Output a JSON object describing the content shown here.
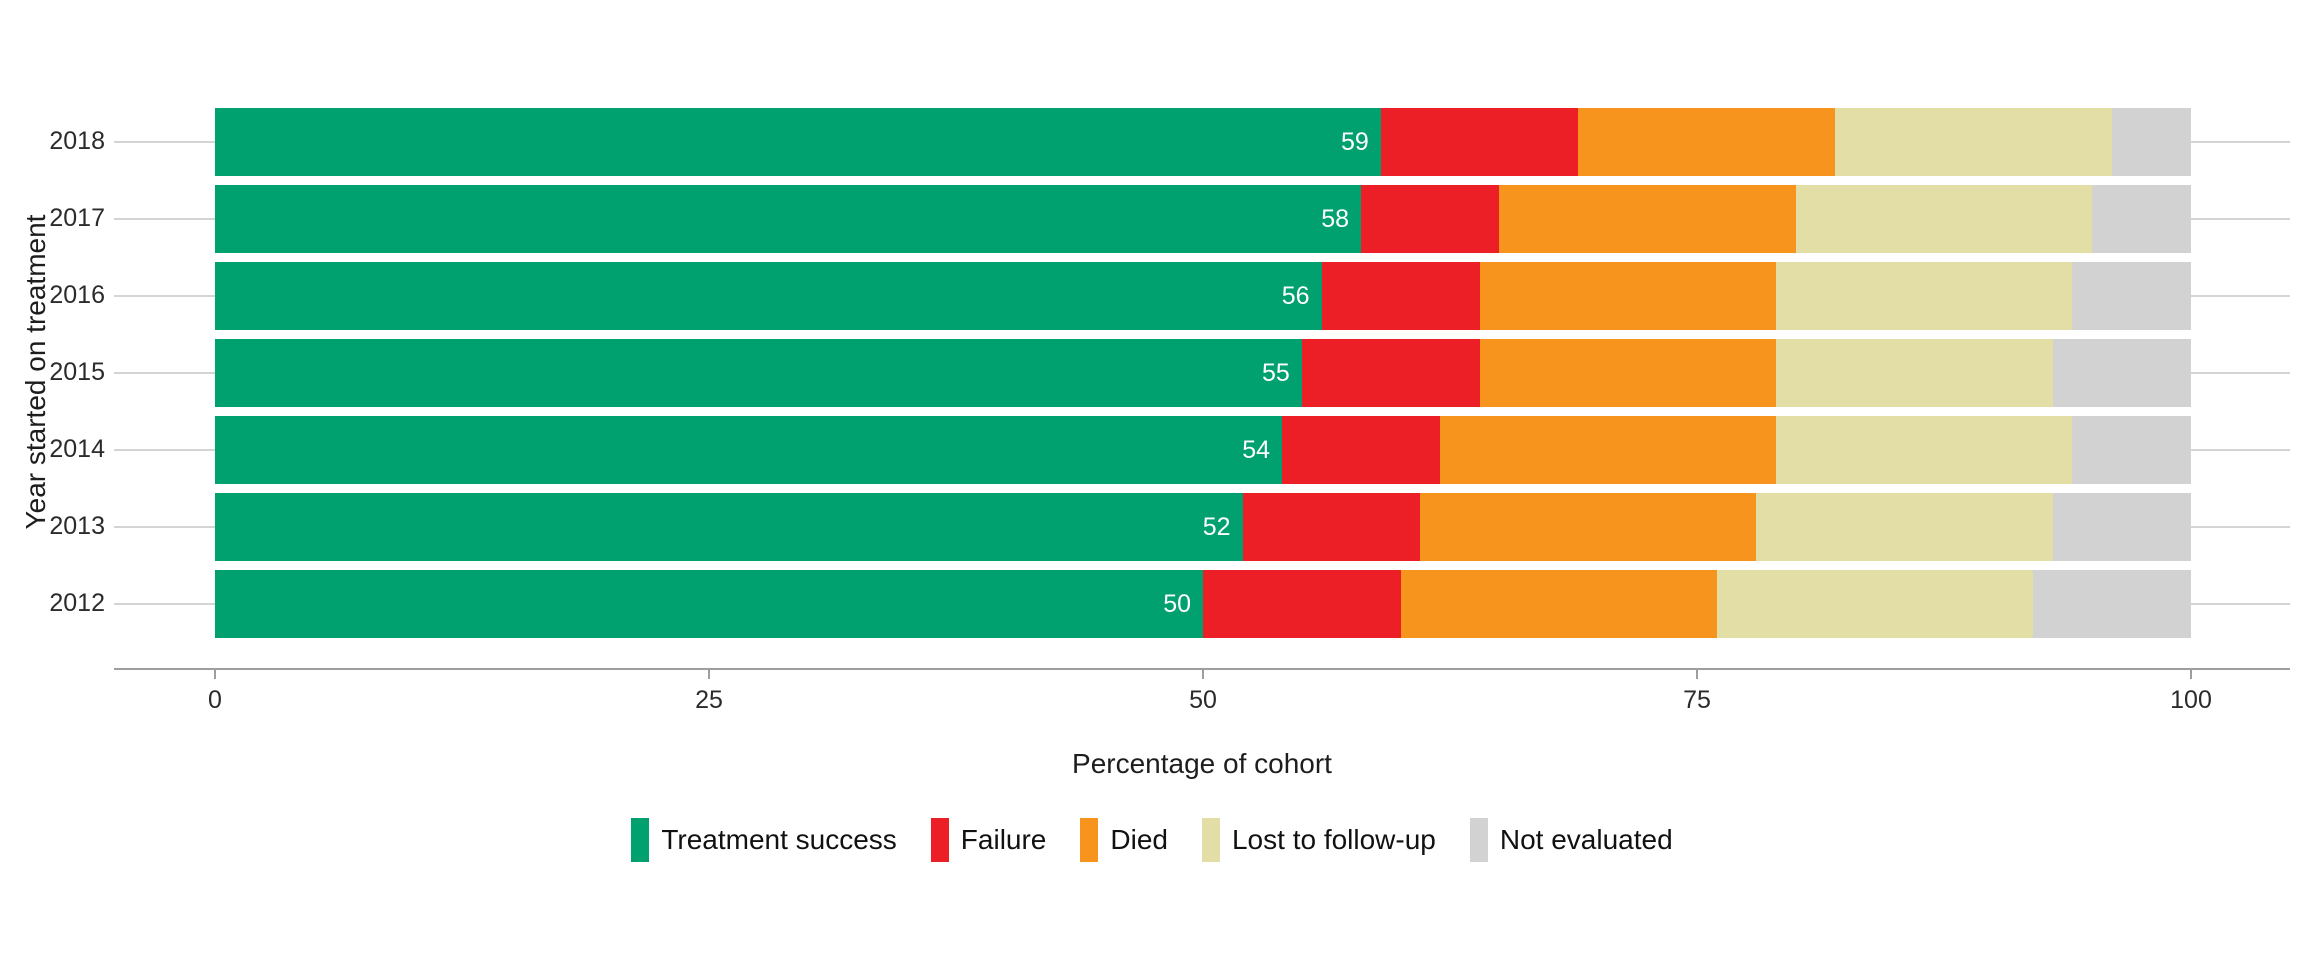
{
  "chart_data": {
    "type": "bar",
    "variant": "horizontal-stacked-percentage",
    "xlabel": "Percentage of cohort",
    "ylabel": "Year started on treatment",
    "xlim": [
      0,
      100
    ],
    "x_ticks": [
      0,
      25,
      50,
      75,
      100
    ],
    "grid": "horizontal-only",
    "legend_position": "bottom",
    "categories": [
      "2018",
      "2017",
      "2016",
      "2015",
      "2014",
      "2013",
      "2012"
    ],
    "series": [
      {
        "name": "Treatment success",
        "color": "#00A06F",
        "values": [
          59,
          58,
          56,
          55,
          54,
          52,
          50
        ],
        "show_labels": true,
        "label_color": "#FFFFFF"
      },
      {
        "name": "Failure",
        "color": "#EC1E26",
        "values": [
          10,
          7,
          8,
          9,
          8,
          9,
          10
        ]
      },
      {
        "name": "Died",
        "color": "#F7941E",
        "values": [
          13,
          15,
          15,
          15,
          17,
          17,
          16
        ]
      },
      {
        "name": "Lost to follow-up",
        "color": "#E3DEA6",
        "values": [
          14,
          15,
          15,
          14,
          15,
          15,
          16
        ]
      },
      {
        "name": "Not evaluated",
        "color": "#D2D2D2",
        "values": [
          4,
          5,
          6,
          7,
          6,
          7,
          8
        ]
      }
    ],
    "bar_value_labels": [
      "59",
      "58",
      "56",
      "55",
      "54",
      "52",
      "50"
    ],
    "colors": {
      "background": "#FFFFFF",
      "gridline": "#D4D4D4",
      "axis_line": "#9E9E9E",
      "tick": "#9E9E9E",
      "tick_text": "#2B2B2B",
      "title_text": "#1D1D1D"
    }
  }
}
